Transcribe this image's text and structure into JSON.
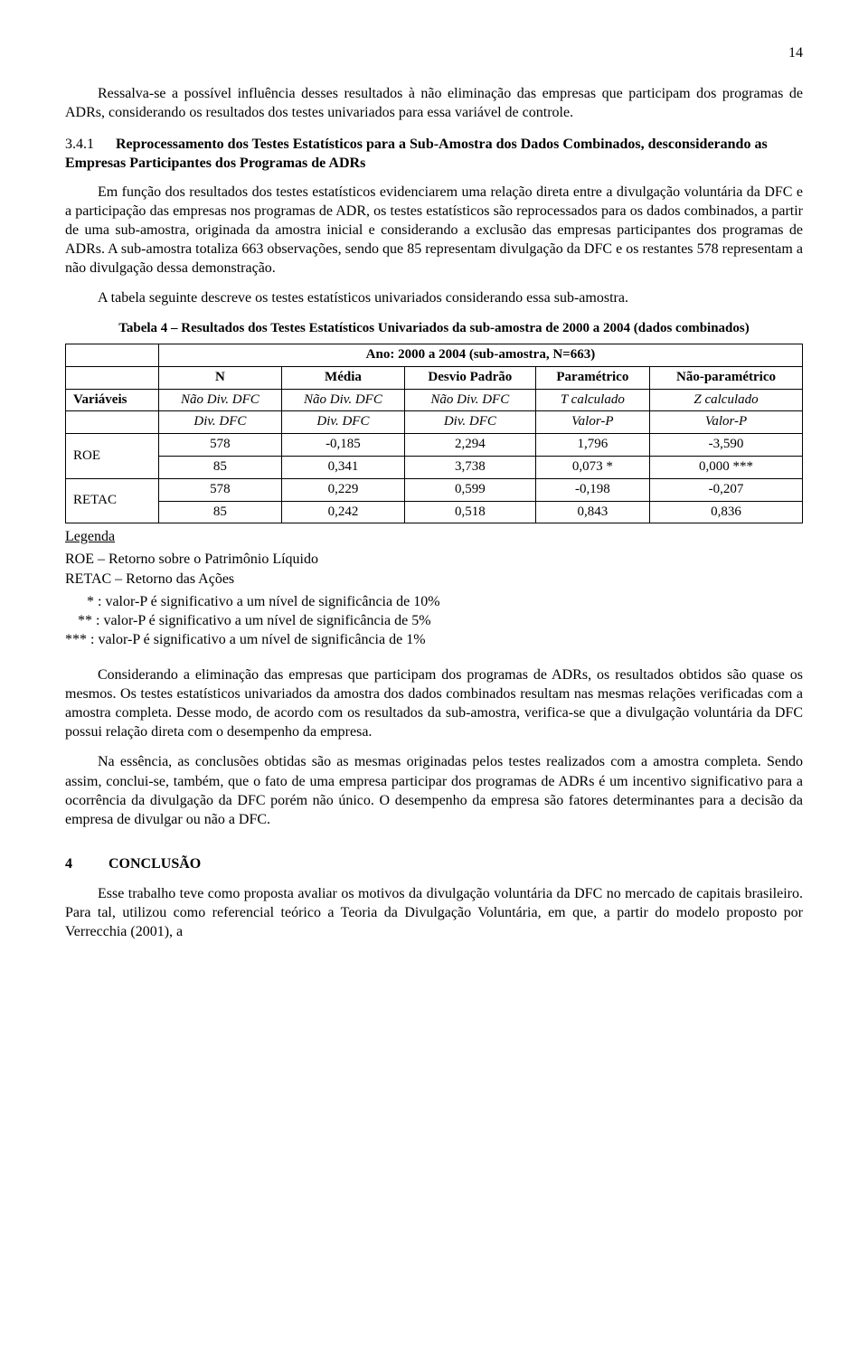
{
  "page_number": "14",
  "paragraphs": {
    "p1": "Ressalva-se a possível influência desses resultados à não eliminação das empresas que participam dos programas de ADRs, considerando os resultados dos testes univariados para essa variável de controle.",
    "p2_num": "3.4.1",
    "p2_title": "Reprocessamento dos Testes Estatísticos para a Sub-Amostra dos Dados Combinados, desconsiderando as Empresas Participantes dos Programas de ADRs",
    "p3": "Em função dos resultados dos testes estatísticos evidenciarem uma relação direta entre a divulgação voluntária da DFC e a participação das empresas nos programas de ADR, os testes estatísticos são reprocessados para os dados combinados, a partir de uma sub-amostra, originada da amostra inicial e considerando a exclusão das empresas participantes dos programas de ADRs. A sub-amostra totaliza 663 observações, sendo que 85 representam divulgação da DFC e os restantes 578 representam a não divulgação dessa demonstração.",
    "p4": "A tabela seguinte descreve os testes estatísticos univariados considerando essa sub-amostra.",
    "p5": "Considerando a eliminação das empresas que participam dos programas de ADRs, os resultados obtidos são quase os mesmos. Os testes estatísticos univariados da amostra dos dados combinados resultam nas mesmas relações verificadas com a amostra completa. Desse modo, de acordo com os resultados da sub-amostra, verifica-se que a divulgação voluntária da DFC possui relação direta com o desempenho da empresa.",
    "p6": "Na essência, as conclusões obtidas são as mesmas originadas pelos testes realizados com a amostra completa. Sendo assim, conclui-se, também, que o fato de uma empresa participar dos programas de ADRs é um incentivo significativo para a ocorrência da divulgação da DFC porém não único. O desempenho da empresa são fatores determinantes para a decisão da empresa de divulgar ou não a DFC.",
    "p7": "Esse trabalho teve como proposta avaliar os motivos da divulgação voluntária da DFC no mercado de capitais brasileiro. Para tal, utilizou como referencial teórico a Teoria da Divulgação Voluntária, em que, a partir do modelo proposto por Verrecchia (2001), a"
  },
  "conclusion": {
    "num": "4",
    "title": "CONCLUSÃO"
  },
  "table4": {
    "caption": "Tabela 4 – Resultados dos Testes Estatísticos Univariados da sub-amostra de 2000 a 2004 (dados combinados)",
    "spanhead": "Ano: 2000 a 2004 (sub-amostra, N=663)",
    "head": {
      "c0": "",
      "c1": "N",
      "c2": "Média",
      "c3": "Desvio Padrão",
      "c4": "Paramétrico",
      "c5": "Não-paramétrico"
    },
    "sub1": {
      "c0": "Variáveis",
      "c1": "Não Div. DFC",
      "c2": "Não Div. DFC",
      "c3": "Não Div. DFC",
      "c4": "T calculado",
      "c5": "Z calculado"
    },
    "sub2": {
      "c0": "",
      "c1": "Div. DFC",
      "c2": "Div. DFC",
      "c3": "Div. DFC",
      "c4": "Valor-P",
      "c5": "Valor-P"
    },
    "rows": [
      {
        "var": "ROE",
        "r1": {
          "n": "578",
          "m": "-0,185",
          "d": "2,294",
          "p": "1,796",
          "np": "-3,590"
        },
        "r2": {
          "n": "85",
          "m": "0,341",
          "d": "3,738",
          "p": "0,073 *",
          "np": "0,000 ***"
        }
      },
      {
        "var": "RETAC",
        "r1": {
          "n": "578",
          "m": "0,229",
          "d": "0,599",
          "p": "-0,198",
          "np": "-0,207"
        },
        "r2": {
          "n": "85",
          "m": "0,242",
          "d": "0,518",
          "p": "0,843",
          "np": "0,836"
        }
      }
    ]
  },
  "legend": {
    "label": "Legenda",
    "roe": "ROE – Retorno sobre o Patrimônio Líquido",
    "retac": "RETAC – Retorno das Ações",
    "n1": "* : valor-P é significativo a um nível de significância de 10%",
    "n2": "** : valor-P é significativo a um nível de significância de 5%",
    "n3": "*** : valor-P é significativo a um nível de significância de 1%"
  }
}
